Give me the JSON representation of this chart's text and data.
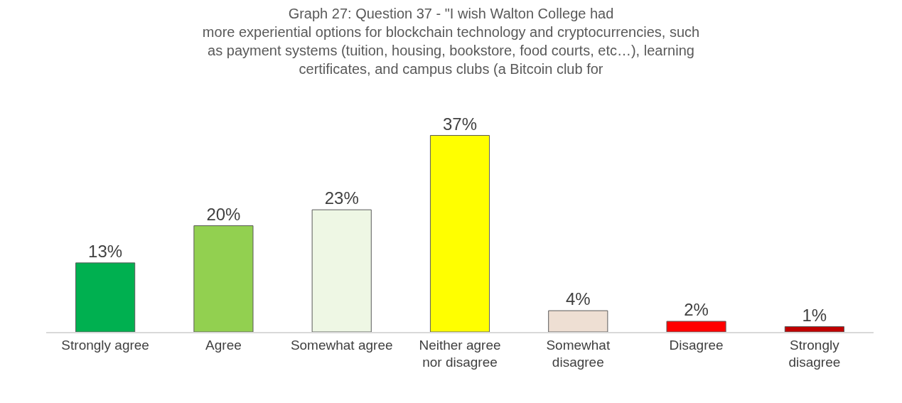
{
  "chart_data": {
    "type": "bar",
    "title": "Graph 27: Question 37 - \"I wish Walton College had\nmore experiential options for blockchain technology and cryptocurrencies, such\nas payment systems (tuition, housing, bookstore, food courts, etc…), learning\ncertificates, and campus clubs (a Bitcoin club for",
    "categories": [
      "Strongly agree",
      "Agree",
      "Somewhat agree",
      "Neither agree\nnor disagree",
      "Somewhat\ndisagree",
      "Disagree",
      "Strongly\ndisagree"
    ],
    "values": [
      13,
      20,
      23,
      37,
      4,
      2,
      1
    ],
    "value_labels": [
      "13%",
      "20%",
      "23%",
      "37%",
      "4%",
      "2%",
      "1%"
    ],
    "colors": [
      "#00b050",
      "#92d050",
      "#eef7e4",
      "#ffff00",
      "#eedfd3",
      "#ff0000",
      "#c00000"
    ],
    "legend": false
  }
}
